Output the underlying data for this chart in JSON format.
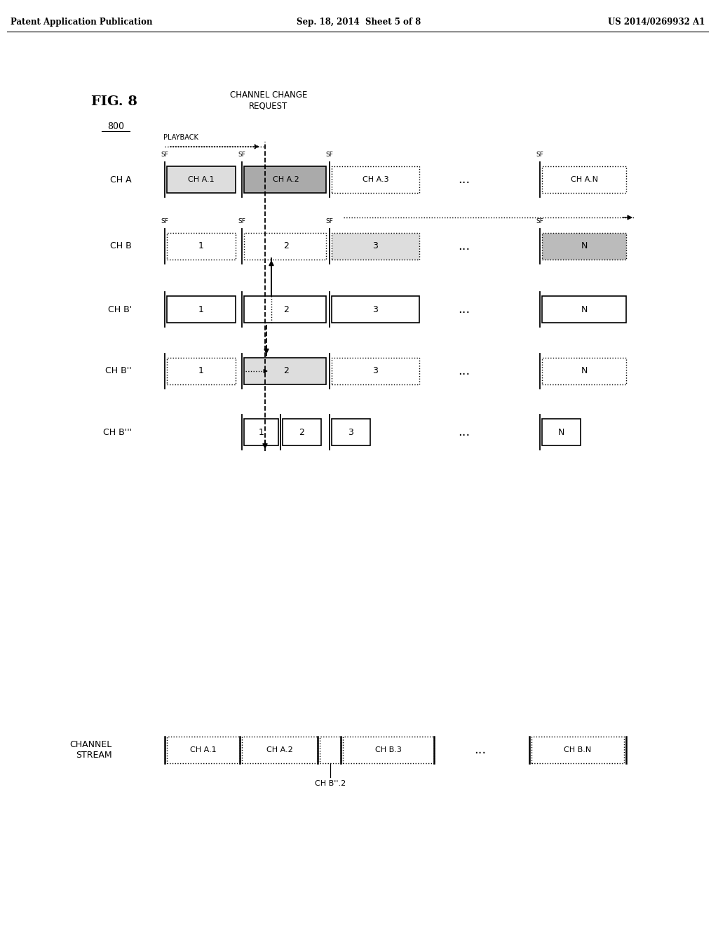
{
  "bg_color": "#ffffff",
  "header_left": "Patent Application Publication",
  "header_center": "Sep. 18, 2014  Sheet 5 of 8",
  "header_right": "US 2014/0269932 A1",
  "fig_label": "FIG. 8",
  "fig_number": "800",
  "channel_change_line1": "CHANNEL CHANGE",
  "channel_change_line2": "REQUEST",
  "playback_text": "PLAYBACK",
  "channel_stream_label": "CHANNEL\nSTREAM",
  "dark_gray": "#aaaaaa",
  "light_gray": "#dddddd",
  "white": "#ffffff",
  "medium_gray": "#bbbbbb"
}
